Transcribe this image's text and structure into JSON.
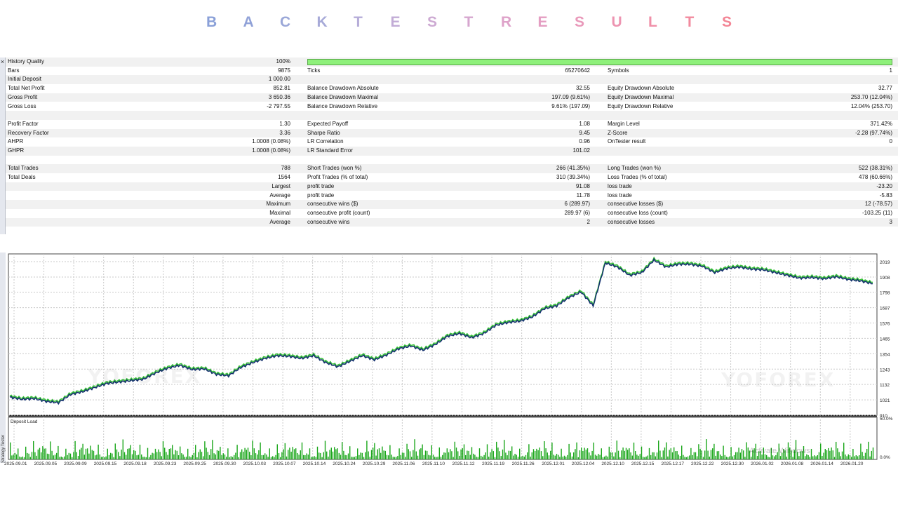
{
  "title": "BACKTESTRESULTS",
  "title_colors": [
    "#8aa0d8",
    "#91a2d8",
    "#9aa7d8",
    "#a7aad8",
    "#b5acd8",
    "#c2acd6",
    "#cdaad3",
    "#d6a6cf",
    "#dea2c9",
    "#e49dc2",
    "#e999ba",
    "#ed94b1",
    "#f08fa8",
    "#f28a9e",
    "#f38595"
  ],
  "report": {
    "rows": [
      {
        "c1": [
          "History Quality",
          "100%"
        ],
        "bar": true
      },
      {
        "c1": [
          "Bars",
          "9875"
        ],
        "c2": [
          "Ticks",
          "65270642"
        ],
        "c3": [
          "Symbols",
          "1"
        ]
      },
      {
        "c1": [
          "Initial Deposit",
          "1 000.00"
        ]
      },
      {
        "c1": [
          "Total Net Profit",
          "852.81"
        ],
        "c2": [
          "Balance Drawdown Absolute",
          "32.55"
        ],
        "c3": [
          "Equity Drawdown Absolute",
          "32.77"
        ]
      },
      {
        "c1": [
          "Gross Profit",
          "3 650.36"
        ],
        "c2": [
          "Balance Drawdown Maximal",
          "197.09 (9.61%)"
        ],
        "c3": [
          "Equity Drawdown Maximal",
          "253.70 (12.04%)"
        ]
      },
      {
        "c1": [
          "Gross Loss",
          "-2 797.55"
        ],
        "c2": [
          "Balance Drawdown Relative",
          "9.61% (197.09)"
        ],
        "c3": [
          "Equity Drawdown Relative",
          "12.04% (253.70)"
        ]
      },
      {},
      {
        "c1": [
          "Profit Factor",
          "1.30"
        ],
        "c2": [
          "Expected Payoff",
          "1.08"
        ],
        "c3": [
          "Margin Level",
          "371.42%"
        ]
      },
      {
        "c1": [
          "Recovery Factor",
          "3.36"
        ],
        "c2": [
          "Sharpe Ratio",
          "9.45"
        ],
        "c3": [
          "Z-Score",
          "-2.28 (97.74%)"
        ]
      },
      {
        "c1": [
          "AHPR",
          "1.0008 (0.08%)"
        ],
        "c2": [
          "LR Correlation",
          "0.96"
        ],
        "c3": [
          "OnTester result",
          "0"
        ]
      },
      {
        "c1": [
          "GHPR",
          "1.0008 (0.08%)"
        ],
        "c2": [
          "LR Standard Error",
          "101.02"
        ]
      },
      {},
      {
        "c1": [
          "Total Trades",
          "788"
        ],
        "c2": [
          "Short Trades (won %)",
          "266 (41.35%)"
        ],
        "c3": [
          "Long Trades (won %)",
          "522 (38.31%)"
        ]
      },
      {
        "c1": [
          "Total Deals",
          "1564"
        ],
        "c2": [
          "Profit Trades (% of total)",
          "310 (39.34%)"
        ],
        "c3": [
          "Loss Trades (% of total)",
          "478 (60.66%)"
        ]
      },
      {
        "c1": [
          "",
          "Largest"
        ],
        "c2": [
          "profit trade",
          "91.08"
        ],
        "c3": [
          "loss trade",
          "-23.20"
        ]
      },
      {
        "c1": [
          "",
          "Average"
        ],
        "c2": [
          "profit trade",
          "11.78"
        ],
        "c3": [
          "loss trade",
          "-5.83"
        ]
      },
      {
        "c1": [
          "",
          "Maximum"
        ],
        "c2": [
          "consecutive wins ($)",
          "6 (289.97)"
        ],
        "c3": [
          "consecutive losses ($)",
          "12 (-78.57)"
        ]
      },
      {
        "c1": [
          "",
          "Maximal"
        ],
        "c2": [
          "consecutive profit (count)",
          "289.97 (6)"
        ],
        "c3": [
          "consecutive loss (count)",
          "-103.25 (11)"
        ]
      },
      {
        "c1": [
          "",
          "Average"
        ],
        "c2": [
          "consecutive wins",
          "2"
        ],
        "c3": [
          "consecutive losses",
          "3"
        ]
      },
      {}
    ]
  },
  "chart_data": {
    "type": "line",
    "y_ticks": [
      "2019",
      "1908",
      "1798",
      "1687",
      "1576",
      "1465",
      "1354",
      "1243",
      "1132",
      "1021",
      "910"
    ],
    "ylim": [
      910,
      2075
    ],
    "x_dates": [
      "2025.09.01",
      "2025.09.05",
      "2025.09.09",
      "2025.09.15",
      "2025.09.18",
      "2025.09.23",
      "2025.09.25",
      "2025.09.30",
      "2025.10.03",
      "2025.10.07",
      "2025.10.14",
      "2025.10.24",
      "2025.10.29",
      "2025.11.06",
      "2025.11.10",
      "2025.11.12",
      "2025.11.19",
      "2025.11.26",
      "2025.12.01",
      "2025.12.04",
      "2025.12.10",
      "2025.12.15",
      "2025.12.17",
      "2025.12.22",
      "2025.12.30",
      "2026.01.02",
      "2026.01.08",
      "2026.01.14",
      "2026.01.20"
    ],
    "balance": [
      1040,
      1025,
      1030,
      1010,
      1000,
      1060,
      1080,
      1110,
      1140,
      1150,
      1160,
      1170,
      1215,
      1250,
      1270,
      1240,
      1245,
      1205,
      1195,
      1255,
      1290,
      1320,
      1340,
      1335,
      1320,
      1340,
      1290,
      1260,
      1300,
      1340,
      1310,
      1345,
      1390,
      1410,
      1380,
      1420,
      1480,
      1500,
      1470,
      1500,
      1560,
      1580,
      1590,
      1620,
      1680,
      1700,
      1760,
      1800,
      1700,
      2010,
      1980,
      1920,
      1940,
      2030,
      1980,
      2000,
      2000,
      1985,
      1940,
      1970,
      1980,
      1965,
      1960,
      1940,
      1920,
      1900,
      1905,
      1895,
      1910,
      1890,
      1880,
      1860
    ],
    "deposit_load_label": "Deposit Load",
    "deposit_load_ticks": [
      "50.0%",
      "0.0%"
    ],
    "strategy_tester_label": "Strategy Tester"
  },
  "watermark": "YOFOREX",
  "activate_windows": "Activate Windows",
  "colors": {
    "balance": "#14306e",
    "equity": "#39c239",
    "load": "#1aa61a",
    "grid": "#c9c9c9"
  }
}
